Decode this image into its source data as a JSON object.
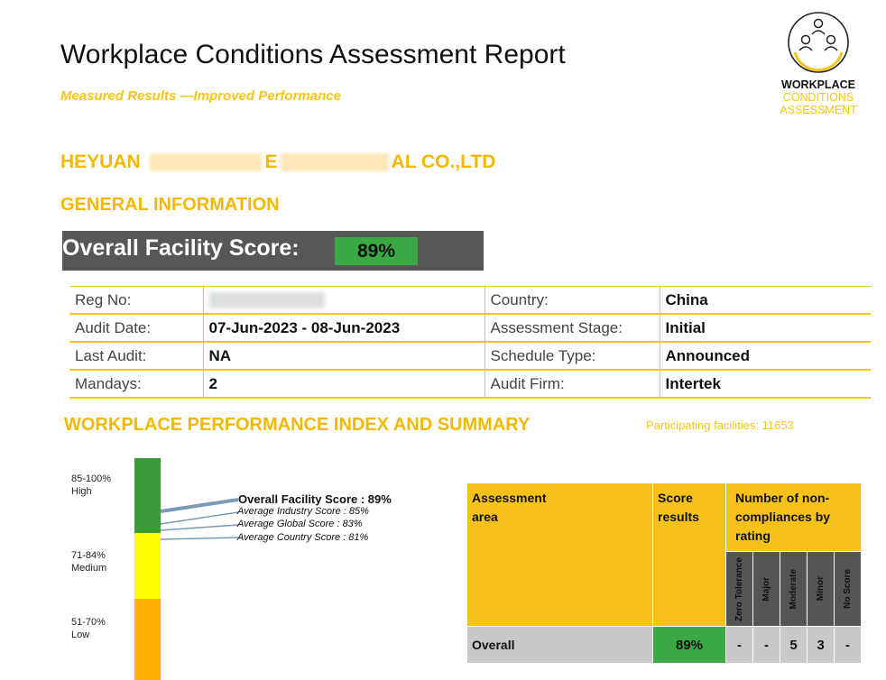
{
  "header": {
    "title": "Workplace Conditions Assessment Report",
    "subtitle": "Measured Results —Improved Performance"
  },
  "logo": {
    "line1": "WORKPLACE",
    "line2": "CONDITIONS",
    "line3": "ASSESSMENT"
  },
  "company": {
    "prefix": "HEYUAN",
    "middle": "E",
    "suffix": "AL CO.,LTD"
  },
  "sections": {
    "general_info": "GENERAL INFORMATION",
    "performance": "WORKPLACE PERFORMANCE INDEX AND SUMMARY"
  },
  "overall": {
    "label": "Overall Facility Score:",
    "value": "89%"
  },
  "info": {
    "reg_no_label": "Reg No:",
    "reg_no_value": "",
    "country_label": "Country:",
    "country_value": "China",
    "audit_date_label": "Audit Date:",
    "audit_date_value": "07-Jun-2023 - 08-Jun-2023",
    "stage_label": "Assessment Stage:",
    "stage_value": "Initial",
    "last_audit_label": "Last Audit:",
    "last_audit_value": "NA",
    "schedule_label": "Schedule Type:",
    "schedule_value": "Announced",
    "mandays_label": "Mandays:",
    "mandays_value": "2",
    "firm_label": "Audit Firm:",
    "firm_value": "Intertek"
  },
  "participating": "Participating facilities: 11653",
  "scale": {
    "high": {
      "range": "85-100%",
      "label": "High",
      "color": "#3a9a3a"
    },
    "medium": {
      "range": "71-84%",
      "label": "Medium",
      "color": "#ffff00"
    },
    "low": {
      "range": "51-70%",
      "label": "Low",
      "color": "#ffb000"
    }
  },
  "scores": {
    "facility": "Overall Facility Score : 89%",
    "industry": "Average Industry Score : 85%",
    "global": "Average Global Score : 83%",
    "country": "Average Country Score : 81%"
  },
  "summary": {
    "h_area": "Assessment\narea",
    "h_score": "Score\nresults",
    "h_count": "Number of non-\ncompliances by\nrating",
    "ratings": [
      "Zero Tolerance",
      "Major",
      "Moderate",
      "Minor",
      "No Score"
    ],
    "row": {
      "label": "Overall",
      "score": "89%",
      "counts": [
        "-",
        "-",
        "5",
        "3",
        "-"
      ]
    }
  },
  "colors": {
    "accent": "#f5c518",
    "score_green": "#3aa843",
    "bar_gray": "#575757"
  }
}
